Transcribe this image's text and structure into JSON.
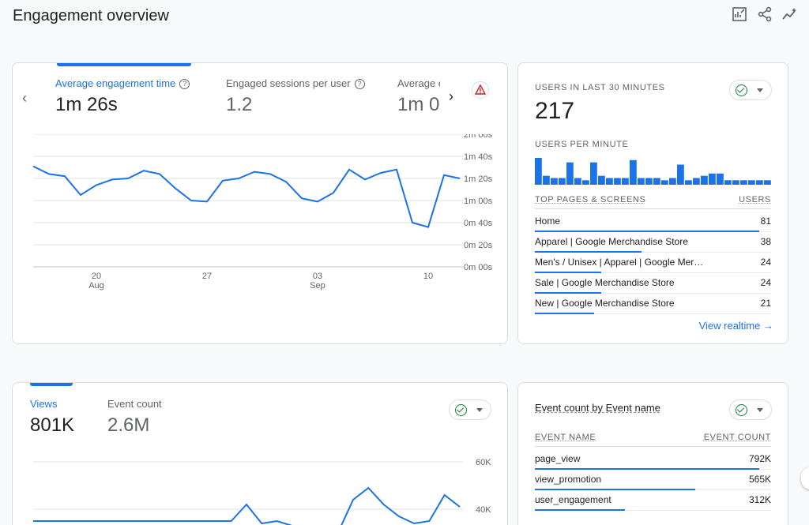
{
  "page": {
    "title": "Engagement overview",
    "icons": [
      "customize-report-icon",
      "share-icon",
      "insights-icon"
    ]
  },
  "engagement_card": {
    "metrics": [
      {
        "label": "Average engagement time",
        "value": "1m 26s",
        "active": true
      },
      {
        "label": "Engaged sessions per user",
        "value": "1.2",
        "active": false
      },
      {
        "label": "Average e",
        "value": "1m 0",
        "active": false
      }
    ],
    "chart_data": {
      "type": "line",
      "x_ticks": [
        {
          "day": "20",
          "month": "Aug"
        },
        {
          "day": "27",
          "month": ""
        },
        {
          "day": "03",
          "month": "Sep"
        },
        {
          "day": "10",
          "month": ""
        }
      ],
      "y_ticks": [
        "2m 00s",
        "1m 40s",
        "1m 20s",
        "1m 00s",
        "0m 40s",
        "0m 20s",
        "0m 00s"
      ],
      "ylim_seconds": [
        0,
        120
      ],
      "values_seconds": [
        91,
        84,
        82,
        65,
        74,
        79,
        80,
        87,
        84,
        71,
        60,
        59,
        78,
        80,
        86,
        84,
        77,
        62,
        59,
        67,
        88,
        79,
        85,
        88,
        40,
        36,
        83,
        80
      ],
      "series_color": "#1a73e8"
    }
  },
  "realtime_card": {
    "header": "USERS IN LAST 30 MINUTES",
    "users": "217",
    "per_minute_label": "USERS PER MINUTE",
    "per_minute": [
      12,
      4,
      3,
      3,
      10,
      3,
      2,
      10,
      4,
      3,
      3,
      3,
      11,
      3,
      3,
      3,
      2,
      3,
      9,
      2,
      3,
      4,
      5,
      5,
      2,
      2,
      2,
      2,
      2,
      2
    ],
    "table_header": {
      "name": "TOP PAGES & SCREENS",
      "value": "USERS"
    },
    "rows": [
      {
        "name": "Home",
        "value": "81",
        "share": 0.95
      },
      {
        "name": "Apparel | Google Merchandise Store",
        "value": "38",
        "share": 0.45
      },
      {
        "name": "Men's / Unisex | Apparel | Google Mer…",
        "value": "24",
        "share": 0.28
      },
      {
        "name": "Sale | Google Merchandise Store",
        "value": "24",
        "share": 0.28
      },
      {
        "name": "New | Google Merchandise Store",
        "value": "21",
        "share": 0.25
      }
    ],
    "link": "View realtime",
    "bar_color": "#1a73e8"
  },
  "views_card": {
    "metrics": [
      {
        "label": "Views",
        "value": "801K",
        "active": true
      },
      {
        "label": "Event count",
        "value": "2.6M",
        "active": false
      }
    ],
    "chart_data": {
      "type": "line",
      "y_ticks": [
        "60K",
        "40K"
      ],
      "values_k": [
        35,
        35,
        35,
        35,
        35,
        35,
        35,
        35,
        35,
        35,
        35,
        35,
        35,
        35,
        42,
        34,
        35,
        33,
        29,
        30,
        30,
        44,
        49,
        42,
        37,
        34,
        35,
        46,
        41
      ],
      "series_color": "#1a73e8"
    }
  },
  "events_card": {
    "title": "Event count by Event name",
    "table_header": {
      "name": "EVENT NAME",
      "value": "EVENT COUNT"
    },
    "rows": [
      {
        "name": "page_view",
        "value": "792K",
        "share": 0.95
      },
      {
        "name": "view_promotion",
        "value": "565K",
        "share": 0.68
      },
      {
        "name": "user_engagement",
        "value": "312K",
        "share": 0.38
      }
    ]
  }
}
